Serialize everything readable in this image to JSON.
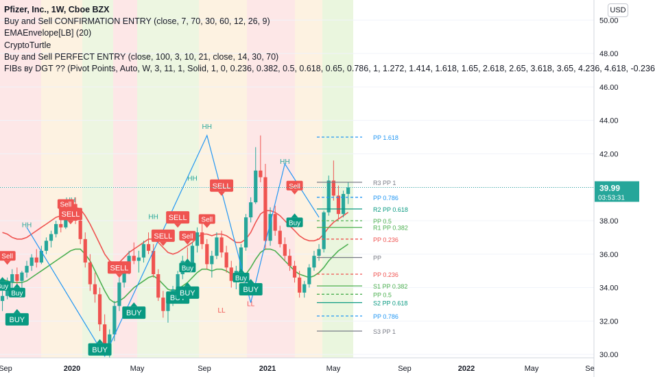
{
  "header": {
    "symbol_line": "Pfizer, Inc., 1W, Cboe BZX",
    "indicators": [
      "Buy and Sell CONFIRMATION ENTRY (close, 7, 70, 30, 60, 12, 26, 9)",
      "EMAEnvelope[LB] (20)",
      "CryptoTurtle",
      "Buy and Sell PERFECT ENTRY (close, 100, 3, 10, 21, close, 14, 30, 70)",
      "FIBs ву DGT ?? (Pivot Points, Auto, W, 3, 11, 1, Solid, 1, 0, 0.236, 0.382, 0.5, 0.618, 0.65, 0.786, 1, 1.272, 1.414, 1.618, 1.65, 2.618, 2.65, 3.618, 3.65, 4.236, 4.618, -0.236"
    ],
    "currency_button": "USD"
  },
  "colors": {
    "up": "#26a69a",
    "down": "#ef5350",
    "ema_upper": "#ef5350",
    "ema_lower": "#4caf50",
    "sell_label": "#ef5350",
    "buy_label": "#089981",
    "zigzag": "#2196f3"
  },
  "price_label": {
    "value": "39.99",
    "countdown": "03:53:31"
  },
  "chart_data": {
    "type": "candlestick",
    "title": "Pfizer, Inc., 1W, Cboe BZX",
    "ylim": [
      29.8,
      51.2
    ],
    "y_ticks": [
      30.0,
      32.0,
      34.0,
      36.0,
      38.0,
      40.0,
      42.0,
      44.0,
      46.0,
      48.0,
      50.0
    ],
    "x_ticks": [
      "Sep",
      "2020",
      "May",
      "Sep",
      "2021",
      "May",
      "Sep",
      "2022",
      "May",
      "Se"
    ],
    "last_price": 39.99,
    "candles": [
      [
        33.2,
        33.8,
        32.6,
        33.5
      ],
      [
        33.5,
        34.6,
        33.3,
        34.3
      ],
      [
        34.3,
        35.1,
        33.9,
        34.8
      ],
      [
        34.8,
        35.2,
        34.1,
        34.4
      ],
      [
        34.4,
        35.0,
        33.9,
        34.9
      ],
      [
        34.9,
        35.6,
        34.6,
        35.3
      ],
      [
        35.3,
        36.0,
        35.0,
        35.8
      ],
      [
        35.8,
        36.3,
        35.2,
        35.5
      ],
      [
        35.5,
        36.5,
        35.4,
        36.2
      ],
      [
        36.2,
        37.0,
        36.0,
        36.8
      ],
      [
        36.8,
        37.4,
        36.4,
        37.2
      ],
      [
        37.2,
        38.0,
        37.0,
        37.8
      ],
      [
        37.8,
        38.4,
        37.3,
        37.6
      ],
      [
        37.6,
        38.6,
        37.5,
        38.4
      ],
      [
        38.4,
        39.2,
        38.0,
        39.0
      ],
      [
        39.0,
        39.4,
        37.8,
        38.0
      ],
      [
        38.0,
        38.3,
        36.6,
        36.9
      ],
      [
        36.9,
        37.3,
        35.2,
        35.5
      ],
      [
        35.5,
        36.0,
        33.8,
        34.2
      ],
      [
        34.2,
        34.9,
        33.1,
        33.6
      ],
      [
        33.6,
        34.0,
        31.4,
        31.8
      ],
      [
        31.8,
        32.4,
        29.9,
        30.3
      ],
      [
        30.3,
        31.5,
        29.0,
        31.2
      ],
      [
        31.2,
        33.2,
        30.8,
        32.9
      ],
      [
        32.9,
        34.6,
        32.6,
        34.3
      ],
      [
        34.3,
        35.5,
        34.0,
        35.2
      ],
      [
        35.2,
        36.2,
        34.8,
        35.9
      ],
      [
        35.9,
        36.7,
        35.4,
        35.6
      ],
      [
        35.6,
        36.2,
        34.9,
        35.8
      ],
      [
        35.8,
        36.8,
        35.5,
        36.6
      ],
      [
        36.6,
        37.3,
        36.0,
        36.2
      ],
      [
        36.2,
        36.6,
        34.6,
        34.8
      ],
      [
        34.8,
        35.1,
        33.2,
        33.4
      ],
      [
        33.4,
        33.8,
        32.2,
        32.6
      ],
      [
        32.6,
        33.4,
        31.9,
        33.2
      ],
      [
        33.2,
        34.1,
        32.9,
        33.9
      ],
      [
        33.9,
        35.0,
        33.6,
        34.8
      ],
      [
        34.8,
        35.9,
        34.5,
        35.6
      ],
      [
        35.6,
        36.4,
        35.1,
        35.3
      ],
      [
        35.3,
        36.7,
        35.0,
        36.5
      ],
      [
        36.5,
        37.6,
        36.1,
        37.3
      ],
      [
        37.3,
        37.9,
        36.3,
        36.6
      ],
      [
        36.6,
        36.9,
        35.1,
        35.4
      ],
      [
        35.4,
        36.2,
        34.6,
        35.9
      ],
      [
        35.9,
        37.3,
        35.7,
        37.0
      ],
      [
        37.0,
        37.4,
        35.8,
        36.1
      ],
      [
        36.1,
        36.5,
        34.9,
        35.2
      ],
      [
        35.2,
        35.6,
        34.0,
        34.4
      ],
      [
        34.4,
        35.3,
        33.9,
        35.0
      ],
      [
        35.0,
        36.6,
        34.8,
        36.4
      ],
      [
        36.4,
        38.4,
        36.2,
        38.2
      ],
      [
        38.2,
        39.4,
        37.9,
        39.1
      ],
      [
        39.1,
        42.4,
        39.0,
        41.0
      ],
      [
        41.0,
        43.1,
        40.3,
        40.6
      ],
      [
        40.6,
        41.4,
        36.3,
        36.8
      ],
      [
        36.8,
        38.8,
        36.5,
        38.4
      ],
      [
        38.4,
        38.9,
        37.1,
        37.4
      ],
      [
        37.4,
        37.7,
        36.4,
        36.6
      ],
      [
        36.6,
        37.0,
        35.6,
        35.9
      ],
      [
        35.9,
        36.3,
        35.0,
        35.3
      ],
      [
        35.3,
        35.6,
        34.3,
        34.6
      ],
      [
        34.6,
        35.0,
        33.4,
        33.7
      ],
      [
        33.7,
        34.4,
        33.4,
        34.2
      ],
      [
        34.2,
        35.4,
        34.0,
        35.2
      ],
      [
        35.2,
        36.2,
        35.0,
        35.9
      ],
      [
        35.9,
        36.6,
        35.6,
        36.3
      ],
      [
        36.3,
        38.6,
        36.1,
        38.5
      ],
      [
        38.5,
        40.7,
        38.3,
        40.4
      ],
      [
        40.4,
        41.6,
        39.2,
        39.5
      ],
      [
        39.5,
        40.1,
        38.1,
        38.4
      ],
      [
        38.4,
        39.8,
        38.2,
        39.6
      ],
      [
        39.6,
        40.3,
        39.0,
        39.99
      ]
    ],
    "ema_upper": [
      37.3,
      37.2,
      37.0,
      36.9,
      36.9,
      37.0,
      37.2,
      37.4,
      37.6,
      37.8,
      38.0,
      38.2,
      38.3,
      38.5,
      38.7,
      38.8,
      38.7,
      38.3,
      37.8,
      37.2,
      36.6,
      36.0,
      35.6,
      35.4,
      35.5,
      35.8,
      36.1,
      36.3,
      36.5,
      36.7,
      36.9,
      36.9,
      36.7,
      36.4,
      36.1,
      36.0,
      36.1,
      36.3,
      36.5,
      36.7,
      37.0,
      37.2,
      37.2,
      37.1,
      37.2,
      37.2,
      37.1,
      36.9,
      36.7,
      36.7,
      36.9,
      37.3,
      37.9,
      38.4,
      38.6,
      38.6,
      38.5,
      38.3,
      38.0,
      37.7,
      37.4,
      37.1,
      36.9,
      36.8,
      36.8,
      36.9,
      37.2,
      37.6,
      37.9,
      38.1,
      38.3,
      38.5
    ],
    "ema_lower": [
      34.5,
      34.4,
      34.3,
      34.3,
      34.3,
      34.4,
      34.6,
      34.8,
      35.0,
      35.2,
      35.4,
      35.6,
      35.8,
      36.0,
      36.2,
      36.3,
      36.3,
      36.0,
      35.6,
      35.0,
      34.4,
      33.8,
      33.3,
      33.1,
      33.2,
      33.4,
      33.7,
      34.0,
      34.2,
      34.4,
      34.6,
      34.7,
      34.5,
      34.2,
      33.9,
      33.8,
      33.9,
      34.1,
      34.3,
      34.6,
      34.9,
      35.1,
      35.1,
      35.0,
      35.1,
      35.1,
      35.0,
      34.8,
      34.6,
      34.6,
      34.8,
      35.2,
      35.7,
      36.1,
      36.3,
      36.3,
      36.2,
      35.9,
      35.6,
      35.3,
      35.0,
      34.8,
      34.7,
      34.6,
      34.7,
      34.9,
      35.2,
      35.6,
      35.9,
      36.2,
      36.4,
      36.6
    ],
    "pivot_levels": [
      {
        "label": "PP 1.618",
        "value": 43.0,
        "color": "#2196f3",
        "style": "dashed"
      },
      {
        "label": "R3 PP 1",
        "value": 40.3,
        "color": "#787b86",
        "style": "solid"
      },
      {
        "label": "PP 0.786",
        "value": 39.4,
        "color": "#2196f3",
        "style": "dashed"
      },
      {
        "label": "R2 PP 0.618",
        "value": 38.7,
        "color": "#089981",
        "style": "solid"
      },
      {
        "label": "PP 0.5",
        "value": 38.0,
        "color": "#4caf50",
        "style": "dashed"
      },
      {
        "label": "R1 PP 0.382",
        "value": 37.6,
        "color": "#4caf50",
        "style": "solid"
      },
      {
        "label": "PP 0.236",
        "value": 36.9,
        "color": "#ef5350",
        "style": "dashed"
      },
      {
        "label": "PP",
        "value": 35.8,
        "color": "#787b86",
        "style": "solid"
      },
      {
        "label": "PP 0.236",
        "value": 34.8,
        "color": "#ef5350",
        "style": "dashed"
      },
      {
        "label": "S1 PP 0.382",
        "value": 34.1,
        "color": "#4caf50",
        "style": "solid"
      },
      {
        "label": "PP 0.5",
        "value": 33.6,
        "color": "#4caf50",
        "style": "dashed"
      },
      {
        "label": "S2 PP 0.618",
        "value": 33.1,
        "color": "#089981",
        "style": "solid"
      },
      {
        "label": "PP 0.786",
        "value": 32.3,
        "color": "#2196f3",
        "style": "dashed"
      },
      {
        "label": "S3 PP 1",
        "value": 31.4,
        "color": "#787b86",
        "style": "solid"
      }
    ],
    "signals": [
      {
        "text": "Sell",
        "type": "sell",
        "i": 1,
        "price": 35.9,
        "small": true
      },
      {
        "text": "Buy",
        "type": "buy",
        "i": 0,
        "price": 34.1,
        "small": true
      },
      {
        "text": "Buy",
        "type": "buy",
        "i": 3,
        "price": 33.7,
        "small": true
      },
      {
        "text": "BUY",
        "type": "buy",
        "i": 3,
        "price": 32.1,
        "small": false
      },
      {
        "text": "Sell",
        "type": "sell",
        "i": 13,
        "price": 39.0,
        "small": true
      },
      {
        "text": "SELL",
        "type": "sell",
        "i": 14,
        "price": 38.4,
        "small": false
      },
      {
        "text": "BUY",
        "type": "buy",
        "i": 20,
        "price": 30.3,
        "small": false
      },
      {
        "text": "SELL",
        "type": "sell",
        "i": 24,
        "price": 35.2,
        "small": false
      },
      {
        "text": "BUY",
        "type": "buy",
        "i": 27,
        "price": 32.5,
        "small": false
      },
      {
        "text": "SELL",
        "type": "sell",
        "i": 33,
        "price": 37.1,
        "small": false
      },
      {
        "text": "SELL",
        "type": "sell",
        "i": 36,
        "price": 38.2,
        "small": false
      },
      {
        "text": "Sell",
        "type": "sell",
        "i": 38,
        "price": 37.1,
        "small": true
      },
      {
        "text": "Buy",
        "type": "buy",
        "i": 38,
        "price": 35.2,
        "small": true
      },
      {
        "text": "BUY",
        "type": "buy",
        "i": 36,
        "price": 33.4,
        "small": false
      },
      {
        "text": "BUY",
        "type": "buy",
        "i": 38,
        "price": 33.7,
        "small": false
      },
      {
        "text": "Sell",
        "type": "sell",
        "i": 42,
        "price": 38.1,
        "small": true
      },
      {
        "text": "SELL",
        "type": "sell",
        "i": 45,
        "price": 40.1,
        "small": false
      },
      {
        "text": "Buy",
        "type": "buy",
        "i": 49,
        "price": 34.6,
        "small": true
      },
      {
        "text": "BUY",
        "type": "buy",
        "i": 51,
        "price": 33.9,
        "small": false
      },
      {
        "text": "Sell",
        "type": "sell",
        "i": 60,
        "price": 40.1,
        "small": true
      },
      {
        "text": "Buy",
        "type": "buy",
        "i": 60,
        "price": 37.9,
        "small": true
      }
    ],
    "swing_labels": [
      {
        "text": "HH",
        "i": 5,
        "price": 37.6
      },
      {
        "text": "HH",
        "i": 14,
        "price": 39.1
      },
      {
        "text": "HH",
        "i": 31,
        "price": 38.1
      },
      {
        "text": "HH",
        "i": 39,
        "price": 40.4
      },
      {
        "text": "HH",
        "i": 42,
        "price": 43.5
      },
      {
        "text": "HH",
        "i": 58,
        "price": 41.4
      },
      {
        "text": "LL",
        "i": 45,
        "price": 32.5
      },
      {
        "text": "LL",
        "i": 51,
        "price": 32.9
      }
    ]
  }
}
